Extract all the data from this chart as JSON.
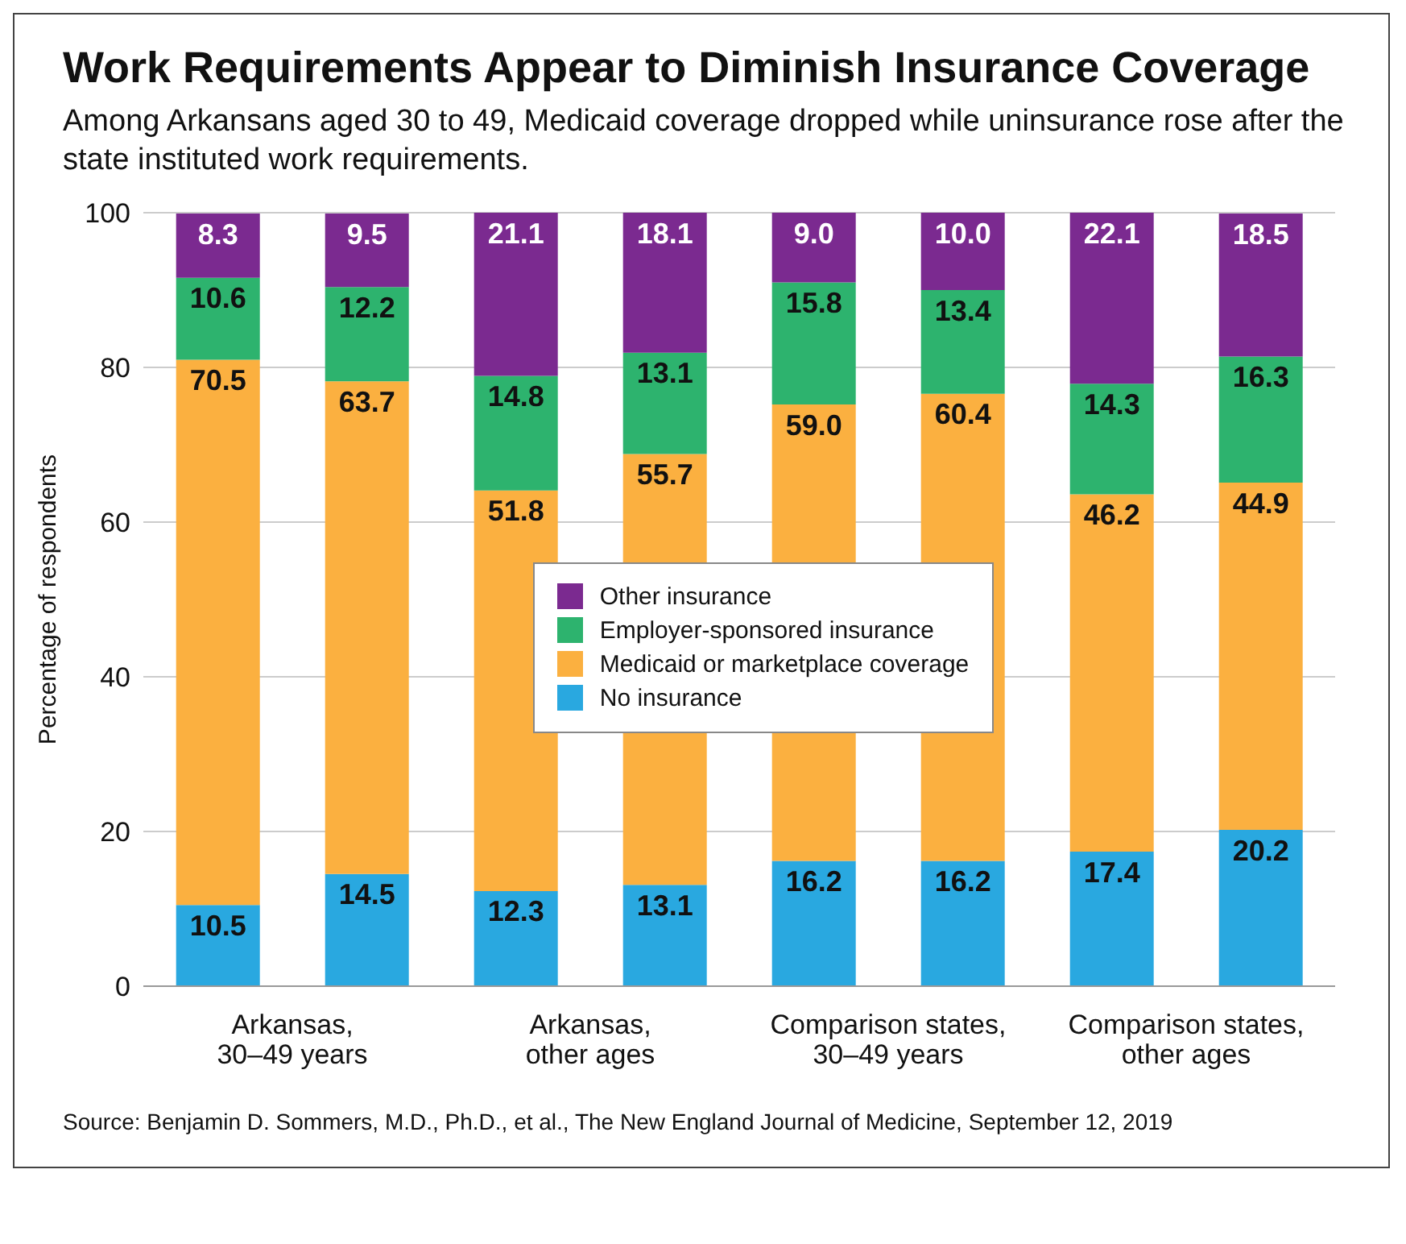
{
  "chart_data": {
    "type": "bar",
    "stacked": true,
    "title": "Work Requirements Appear to Diminish Insurance Coverage",
    "subtitle": "Among Arkansans aged 30 to 49, Medicaid coverage dropped while uninsurance rose after the state instituted work requirements.",
    "ylabel": "Percentage of respondents",
    "categories": [
      "Arkansas,\n30–49 years",
      null,
      "Arkansas,\nother ages",
      null,
      "Comparison states,\n30–49 years",
      null,
      "Comparison states,\nother ages",
      null
    ],
    "series": [
      {
        "name": "No insurance",
        "color": "#29a8e0",
        "values": [
          10.5,
          14.5,
          12.3,
          13.1,
          16.2,
          16.2,
          17.4,
          20.2
        ],
        "value_labels": [
          "10.5",
          "14.5",
          "12.3",
          "13.1",
          "16.2",
          "16.2",
          "17.4",
          "20.2"
        ]
      },
      {
        "name": "Medicaid or marketplace coverage",
        "color": "#fbb040",
        "values": [
          70.5,
          63.7,
          51.8,
          55.7,
          59.0,
          60.4,
          46.2,
          44.9
        ],
        "value_labels": [
          "70.5",
          "63.7",
          "51.8",
          "55.7",
          "59.0",
          "60.4",
          "46.2",
          "44.9"
        ]
      },
      {
        "name": "Employer-sponsored insurance",
        "color": "#2db36e",
        "values": [
          10.6,
          12.2,
          14.8,
          13.1,
          15.8,
          13.4,
          14.3,
          16.3
        ],
        "value_labels": [
          "10.6",
          "12.2",
          "14.8",
          "13.1",
          "15.8",
          "13.4",
          "14.3",
          "16.3"
        ]
      },
      {
        "name": "Other insurance",
        "color": "#7b2a90",
        "values": [
          8.3,
          9.5,
          21.1,
          18.1,
          9.0,
          10.0,
          22.1,
          18.5
        ],
        "value_labels": [
          "8.3",
          "9.5",
          "21.1",
          "18.1",
          "9.0",
          "10.0",
          "22.1",
          "18.5"
        ]
      }
    ],
    "ylim": [
      0,
      100
    ],
    "yticks": [
      0,
      20,
      40,
      60,
      80,
      100
    ],
    "grid": "y",
    "legend": "center",
    "annotations": [
      "Source: Benjamin D. Sommers, M.D., Ph.D., et al., The New England Journal of Medicine, September 12, 2019"
    ]
  }
}
